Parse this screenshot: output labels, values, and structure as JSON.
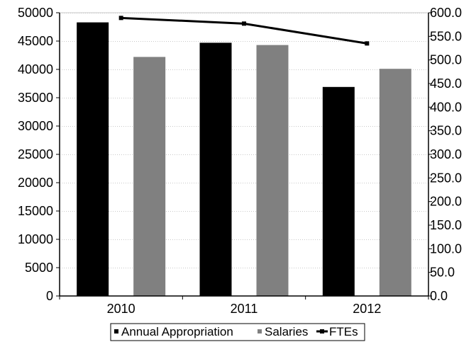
{
  "chart_data": {
    "type": "bar",
    "categories": [
      "2010",
      "2011",
      "2012"
    ],
    "series": [
      {
        "name": "Annual Appropriation",
        "kind": "bar",
        "axis": "left",
        "color": "#000000",
        "values": [
          48300,
          44700,
          36900
        ]
      },
      {
        "name": "Salaries",
        "kind": "bar",
        "axis": "left",
        "color": "#808080",
        "values": [
          42200,
          44300,
          40100
        ]
      },
      {
        "name": "FTEs",
        "kind": "line",
        "axis": "right",
        "color": "#000000",
        "values": [
          589,
          577,
          535
        ]
      }
    ],
    "y_left": {
      "min": 0,
      "max": 50000,
      "step": 5000,
      "ticks": [
        "0",
        "5000",
        "10000",
        "15000",
        "20000",
        "25000",
        "30000",
        "35000",
        "40000",
        "45000",
        "50000"
      ]
    },
    "y_right": {
      "min": 0,
      "max": 600,
      "step": 50,
      "ticks": [
        "0.0",
        "50.0",
        "100.0",
        "150.0",
        "200.0",
        "250.0",
        "300.0",
        "350.0",
        "400.0",
        "450.0",
        "500.0",
        "550.0",
        "600.0"
      ]
    },
    "grid": "horizontal-dotted",
    "legend": "bottom-center"
  }
}
